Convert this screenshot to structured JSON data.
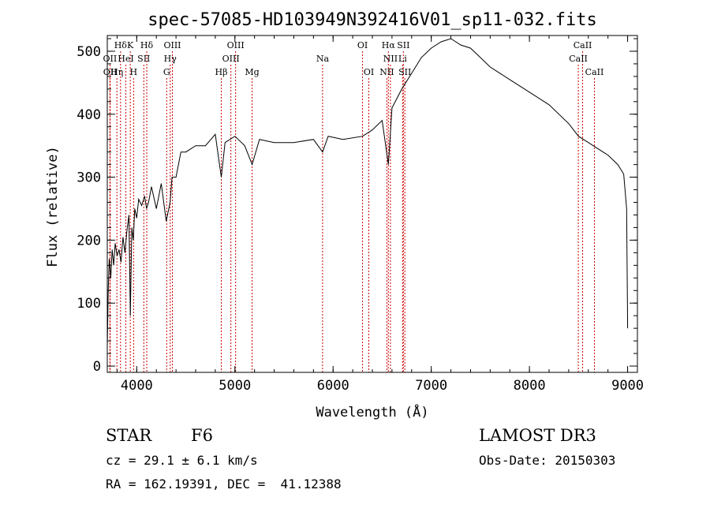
{
  "chart_data": {
    "type": "line",
    "title": "spec-57085-HD103949N392416V01_sp11-032.fits",
    "xlabel": "Wavelength (Å)",
    "ylabel": "Flux (relative)",
    "xlim": [
      3700,
      9100
    ],
    "ylim": [
      -10,
      525
    ],
    "xticks": [
      4000,
      5000,
      6000,
      7000,
      8000,
      9000
    ],
    "yticks": [
      0,
      100,
      200,
      300,
      400,
      500
    ],
    "line_color": "#000000",
    "marker_color": "#cc0000",
    "series": [
      {
        "x": [
          3700,
          3710,
          3720,
          3735,
          3750,
          3765,
          3780,
          3800,
          3820,
          3840,
          3860,
          3880,
          3900,
          3920,
          3935,
          3950,
          3965,
          3980,
          4000,
          4020,
          4050,
          4080,
          4100,
          4120,
          4150,
          4200,
          4250,
          4300,
          4340,
          4360,
          4400,
          4450,
          4500,
          4550,
          4600,
          4700,
          4800,
          4861,
          4900,
          5000,
          5100,
          5175,
          5250,
          5400,
          5600,
          5800,
          5893,
          5950,
          6100,
          6300,
          6400,
          6500,
          6563,
          6600,
          6700,
          6800,
          6900,
          7000,
          7100,
          7200,
          7300,
          7400,
          7500,
          7600,
          7800,
          8000,
          8200,
          8400,
          8500,
          8600,
          8700,
          8800,
          8900,
          8960,
          8990,
          9000
        ],
        "y": [
          30,
          120,
          170,
          140,
          185,
          160,
          195,
          175,
          185,
          165,
          205,
          180,
          215,
          240,
          80,
          220,
          200,
          250,
          235,
          265,
          255,
          270,
          250,
          260,
          285,
          250,
          290,
          230,
          260,
          300,
          300,
          340,
          340,
          345,
          350,
          350,
          368,
          300,
          355,
          365,
          350,
          320,
          360,
          355,
          355,
          360,
          340,
          365,
          360,
          365,
          375,
          390,
          320,
          410,
          440,
          465,
          490,
          505,
          515,
          520,
          510,
          505,
          490,
          475,
          455,
          435,
          415,
          385,
          365,
          355,
          345,
          335,
          320,
          305,
          250,
          60
        ]
      }
    ],
    "lines_row1": [
      {
        "label": "Hδ",
        "x": 3835
      },
      {
        "label": "K",
        "x": 3934
      },
      {
        "label": "Hδ",
        "x": 4102
      },
      {
        "label": "OIII",
        "x": 4363
      },
      {
        "label": "OIII",
        "x": 5007
      },
      {
        "label": "OI",
        "x": 6300
      },
      {
        "label": "Hα",
        "x": 6563
      },
      {
        "label": "SII",
        "x": 6716
      },
      {
        "label": "CaII",
        "x": 8542
      }
    ],
    "lines_row2": [
      {
        "label": "OII",
        "x": 3727
      },
      {
        "label": "HeI",
        "x": 3889
      },
      {
        "label": "SII",
        "x": 4072
      },
      {
        "label": "Hγ",
        "x": 4341
      },
      {
        "label": "OIII",
        "x": 4959
      },
      {
        "label": "Na",
        "x": 5893
      },
      {
        "label": "NII",
        "x": 6584
      },
      {
        "label": "Li",
        "x": 6708
      },
      {
        "label": "CaII",
        "x": 8498
      }
    ],
    "lines_row3": [
      {
        "label": "OII",
        "x": 3729
      },
      {
        "label": "Hη",
        "x": 3798
      },
      {
        "label": "H",
        "x": 3968
      },
      {
        "label": "G",
        "x": 4305
      },
      {
        "label": "Hβ",
        "x": 4861
      },
      {
        "label": "Mg",
        "x": 5175
      },
      {
        "label": "OI",
        "x": 6364
      },
      {
        "label": "NII",
        "x": 6548
      },
      {
        "label": "SII",
        "x": 6731
      },
      {
        "label": "CaII",
        "x": 8662
      }
    ]
  },
  "info": {
    "class_label": "STAR",
    "subclass": "F6",
    "survey": "LAMOST DR3",
    "cz": "cz = 29.1 ± 6.1 km/s",
    "obs_date": "Obs-Date: 20150303",
    "coords": "RA = 162.19391, DEC =  41.12388"
  }
}
